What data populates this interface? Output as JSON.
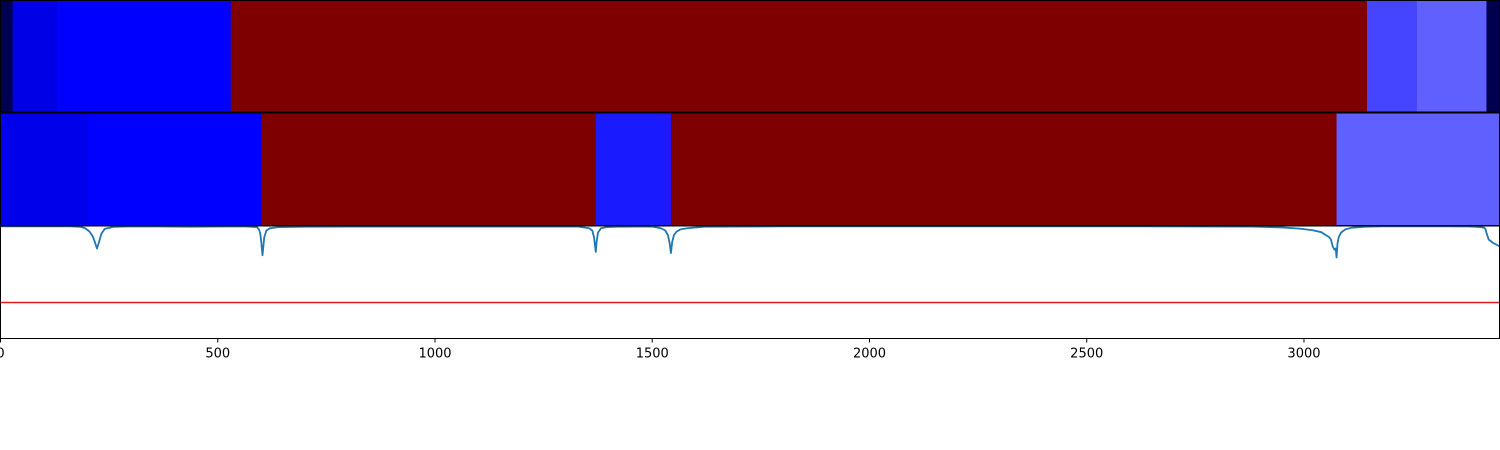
{
  "chart_data": [
    {
      "type": "heatmap",
      "xlim": [
        0,
        3450
      ],
      "segments": [
        {
          "start": 0,
          "end": 28,
          "color": "#00004f"
        },
        {
          "start": 28,
          "end": 130,
          "color": "#0000e6"
        },
        {
          "start": 130,
          "end": 530,
          "color": "#0000ff"
        },
        {
          "start": 530,
          "end": 3145,
          "color": "#7f0000"
        },
        {
          "start": 3145,
          "end": 3260,
          "color": "#4545ff"
        },
        {
          "start": 3260,
          "end": 3420,
          "color": "#6060ff"
        },
        {
          "start": 3420,
          "end": 3450,
          "color": "#00004f"
        }
      ]
    },
    {
      "type": "heatmap",
      "xlim": [
        0,
        3450
      ],
      "segments": [
        {
          "start": 0,
          "end": 200,
          "color": "#0000ea"
        },
        {
          "start": 200,
          "end": 600,
          "color": "#0000ff"
        },
        {
          "start": 600,
          "end": 1370,
          "color": "#7f0000"
        },
        {
          "start": 1370,
          "end": 1543,
          "color": "#1a1aff"
        },
        {
          "start": 1543,
          "end": 3075,
          "color": "#7f0000"
        },
        {
          "start": 3075,
          "end": 3450,
          "color": "#6060ff"
        }
      ]
    },
    {
      "type": "line",
      "xlim": [
        0,
        3450
      ],
      "ylim": [
        -0.5,
        0.5
      ],
      "xticks": [
        "0",
        "500",
        "1000",
        "1500",
        "2000",
        "2500",
        "3000"
      ],
      "xtick_values": [
        0,
        500,
        1000,
        1500,
        2000,
        2500,
        3000
      ],
      "threshold": {
        "y": -0.18,
        "color": "#e31a1c"
      },
      "series": [
        {
          "color": "#1f77b4",
          "x": [
            0,
            160,
            185,
            195,
            205,
            212,
            217,
            222,
            227,
            232,
            240,
            260,
            300,
            360,
            440,
            480,
            560,
            590,
            595,
            598,
            600,
            603,
            607,
            612,
            620,
            640,
            700,
            800,
            1000,
            1200,
            1330,
            1355,
            1362,
            1366,
            1370,
            1372,
            1375,
            1382,
            1395,
            1420,
            1500,
            1520,
            1530,
            1536,
            1540,
            1543,
            1546,
            1550,
            1556,
            1565,
            1580,
            1620,
            1800,
            2200,
            2600,
            2880,
            2950,
            2990,
            3020,
            3040,
            3050,
            3058,
            3062,
            3066,
            3070,
            3073,
            3075,
            3077,
            3080,
            3085,
            3095,
            3110,
            3140,
            3180,
            3250,
            3330,
            3380,
            3400,
            3410,
            3415,
            3418,
            3420,
            3425,
            3435,
            3445,
            3450
          ],
          "y": [
            0.497,
            0.497,
            0.492,
            0.48,
            0.45,
            0.41,
            0.36,
            0.3,
            0.36,
            0.43,
            0.475,
            0.492,
            0.497,
            0.496,
            0.494,
            0.495,
            0.497,
            0.49,
            0.47,
            0.43,
            0.36,
            0.24,
            0.4,
            0.46,
            0.48,
            0.49,
            0.494,
            0.495,
            0.495,
            0.495,
            0.495,
            0.48,
            0.46,
            0.4,
            0.27,
            0.36,
            0.44,
            0.48,
            0.49,
            0.494,
            0.495,
            0.48,
            0.46,
            0.42,
            0.35,
            0.26,
            0.36,
            0.42,
            0.45,
            0.47,
            0.48,
            0.494,
            0.497,
            0.497,
            0.497,
            0.495,
            0.487,
            0.477,
            0.462,
            0.445,
            0.42,
            0.4,
            0.38,
            0.32,
            0.29,
            0.3,
            0.22,
            0.34,
            0.4,
            0.44,
            0.47,
            0.485,
            0.494,
            0.497,
            0.497,
            0.497,
            0.496,
            0.492,
            0.488,
            0.485,
            0.47,
            0.44,
            0.38,
            0.35,
            0.33,
            0.32
          ]
        }
      ]
    }
  ]
}
